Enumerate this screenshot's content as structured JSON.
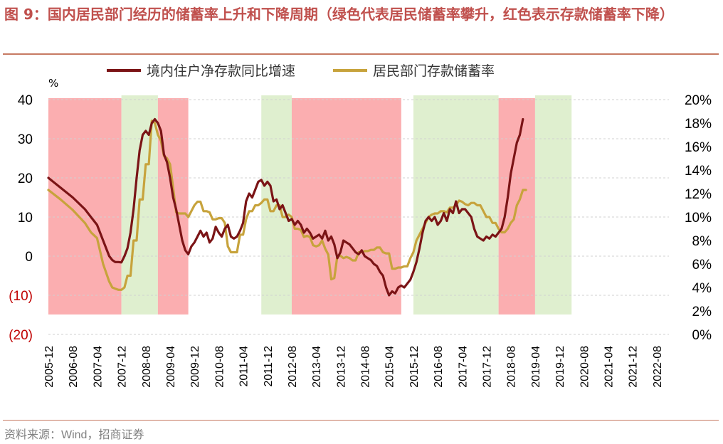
{
  "title": "图 9：国内居民部门经历的储蓄率上升和下降周期（绿色代表居民储蓄率攀升，红色表示存款储蓄率下降）",
  "source": "资料来源：Wind，招商证券",
  "chart_data": {
    "type": "line",
    "title": "图 9：国内居民部门经历的储蓄率上升和下降周期（绿色代表居民储蓄率攀升，红色表示存款储蓄率下降）",
    "y_unit": "%",
    "ylim_left": [
      -20,
      40
    ],
    "ylim_right": [
      0,
      20
    ],
    "left_ticks": [
      "40",
      "30",
      "20",
      "10",
      "0",
      "(10)",
      "(20)"
    ],
    "left_tick_values": [
      40,
      30,
      20,
      10,
      0,
      -10,
      -20
    ],
    "right_ticks": [
      "20%",
      "18%",
      "16%",
      "14%",
      "12%",
      "10%",
      "8%",
      "6%",
      "4%",
      "2%",
      "0%"
    ],
    "right_tick_values": [
      20,
      18,
      16,
      14,
      12,
      10,
      8,
      6,
      4,
      2,
      0
    ],
    "x_categories": [
      "2005-12",
      "2006-08",
      "2007-04",
      "2007-12",
      "2008-08",
      "2009-04",
      "2009-12",
      "2010-08",
      "2011-04",
      "2011-12",
      "2012-08",
      "2013-04",
      "2013-12",
      "2014-08",
      "2015-04",
      "2015-12",
      "2016-08",
      "2017-04",
      "2017-12",
      "2018-08",
      "2019-04",
      "2019-12",
      "2020-08",
      "2021-04",
      "2021-12",
      "2022-08"
    ],
    "x_start": "2005-12",
    "x_end": "2022-12",
    "colors": {
      "growth": "#7b1416",
      "rate": "#c7a33c",
      "green_band": "#dfefcf",
      "red_band": "#fbaeb0"
    },
    "bands": [
      {
        "type": "red",
        "start": 0,
        "end": 24
      },
      {
        "type": "green",
        "start": 24,
        "end": 36
      },
      {
        "type": "red",
        "start": 36,
        "end": 46
      },
      {
        "type": "green",
        "start": 70,
        "end": 80
      },
      {
        "type": "red",
        "start": 80,
        "end": 116
      },
      {
        "type": "green",
        "start": 120,
        "end": 148
      },
      {
        "type": "red",
        "start": 148,
        "end": 160
      },
      {
        "type": "green",
        "start": 160,
        "end": 172
      }
    ],
    "series": [
      {
        "name": "境内住户净存款同比增速",
        "axis": "left",
        "color": "#7b1416",
        "points": [
          [
            0,
            20
          ],
          [
            4,
            17.5
          ],
          [
            8,
            15
          ],
          [
            12,
            12
          ],
          [
            14,
            10
          ],
          [
            16,
            8
          ],
          [
            18,
            4
          ],
          [
            20,
            0
          ],
          [
            21,
            -1
          ],
          [
            22,
            -1.5
          ],
          [
            23,
            -1.5
          ],
          [
            24,
            -1.6
          ],
          [
            25,
            0
          ],
          [
            26,
            2
          ],
          [
            27,
            6
          ],
          [
            28,
            12
          ],
          [
            29,
            20
          ],
          [
            30,
            27
          ],
          [
            31,
            31
          ],
          [
            32,
            32
          ],
          [
            33,
            31
          ],
          [
            34,
            34
          ],
          [
            35,
            35
          ],
          [
            36,
            34
          ],
          [
            37,
            32
          ],
          [
            38,
            26
          ],
          [
            39,
            24
          ],
          [
            40,
            20
          ],
          [
            41,
            15
          ],
          [
            42,
            12
          ],
          [
            43,
            8
          ],
          [
            44,
            4
          ],
          [
            45,
            1.5
          ],
          [
            46,
            0.5
          ],
          [
            47,
            2.5
          ],
          [
            48,
            3.5
          ],
          [
            49,
            5
          ],
          [
            50,
            6.5
          ],
          [
            51,
            5
          ],
          [
            52,
            6
          ],
          [
            53,
            3.5
          ],
          [
            54,
            4.5
          ],
          [
            55,
            7.5
          ],
          [
            56,
            6
          ],
          [
            57,
            5
          ],
          [
            58,
            7
          ],
          [
            59,
            8
          ],
          [
            60,
            5
          ],
          [
            61,
            4.5
          ],
          [
            62,
            5
          ],
          [
            63,
            6.5
          ],
          [
            64,
            8.5
          ],
          [
            65,
            14
          ],
          [
            66,
            16
          ],
          [
            67,
            15
          ],
          [
            68,
            17
          ],
          [
            69,
            19
          ],
          [
            70,
            19.5
          ],
          [
            71,
            18
          ],
          [
            72,
            19
          ],
          [
            73,
            18
          ],
          [
            74,
            14
          ],
          [
            75,
            14.5
          ],
          [
            76,
            12
          ],
          [
            77,
            13
          ],
          [
            78,
            11
          ],
          [
            79,
            9
          ],
          [
            80,
            9.5
          ],
          [
            81,
            8
          ],
          [
            82,
            9
          ],
          [
            83,
            8
          ],
          [
            84,
            6
          ],
          [
            85,
            7
          ],
          [
            86,
            6
          ],
          [
            87,
            4.5
          ],
          [
            88,
            5
          ],
          [
            89,
            5.5
          ],
          [
            90,
            4.5
          ],
          [
            91,
            6.5
          ],
          [
            92,
            4
          ],
          [
            93,
            5
          ],
          [
            94,
            3
          ],
          [
            95,
            -0.5
          ],
          [
            96,
            1
          ],
          [
            97,
            4
          ],
          [
            98,
            3.5
          ],
          [
            99,
            3
          ],
          [
            100,
            2
          ],
          [
            101,
            1
          ],
          [
            102,
            0.5
          ],
          [
            103,
            1.5
          ],
          [
            104,
            0
          ],
          [
            105,
            -0.5
          ],
          [
            106,
            -1
          ],
          [
            107,
            -2
          ],
          [
            108,
            -2.5
          ],
          [
            109,
            -4
          ],
          [
            110,
            -5
          ],
          [
            111,
            -8
          ],
          [
            112,
            -10
          ],
          [
            113,
            -9
          ],
          [
            114,
            -9.5
          ],
          [
            115,
            -8
          ],
          [
            116,
            -7.5
          ],
          [
            117,
            -8
          ],
          [
            118,
            -7
          ],
          [
            119,
            -6
          ],
          [
            120,
            -4
          ],
          [
            121,
            -1.5
          ],
          [
            122,
            2
          ],
          [
            123,
            6
          ],
          [
            124,
            9
          ],
          [
            125,
            10
          ],
          [
            126,
            9
          ],
          [
            127,
            10
          ],
          [
            128,
            8
          ],
          [
            129,
            9
          ],
          [
            130,
            11
          ],
          [
            131,
            9
          ],
          [
            132,
            12
          ],
          [
            133,
            11
          ],
          [
            134,
            14
          ],
          [
            135,
            11
          ],
          [
            136,
            12
          ],
          [
            137,
            12
          ],
          [
            138,
            11
          ],
          [
            139,
            10
          ],
          [
            140,
            7
          ],
          [
            141,
            5
          ],
          [
            142,
            4.5
          ],
          [
            143,
            4
          ],
          [
            144,
            5
          ],
          [
            145,
            4.5
          ],
          [
            146,
            5.5
          ],
          [
            147,
            5
          ],
          [
            148,
            6
          ],
          [
            149,
            7
          ],
          [
            150,
            10
          ],
          [
            151,
            15
          ],
          [
            152,
            21
          ],
          [
            153,
            25
          ],
          [
            154,
            29
          ],
          [
            155,
            31
          ],
          [
            156,
            35
          ]
        ]
      },
      {
        "name": "居民部门存款储蓄率",
        "axis": "right",
        "color": "#c7a33c",
        "points": [
          [
            0,
            12.3
          ],
          [
            4,
            11.5
          ],
          [
            8,
            10.6
          ],
          [
            12,
            9.5
          ],
          [
            14,
            8.7
          ],
          [
            16,
            8.2
          ],
          [
            18,
            6
          ],
          [
            20,
            4.5
          ],
          [
            21,
            4
          ],
          [
            22,
            3.9
          ],
          [
            23,
            3.8
          ],
          [
            24,
            3.8
          ],
          [
            25,
            4
          ],
          [
            26,
            5
          ],
          [
            27,
            5
          ],
          [
            28,
            8
          ],
          [
            29,
            8
          ],
          [
            30,
            11.5
          ],
          [
            31,
            11.5
          ],
          [
            32,
            14.5
          ],
          [
            33,
            14.5
          ],
          [
            34,
            18.2
          ],
          [
            35,
            18
          ],
          [
            36,
            17
          ],
          [
            37,
            16.5
          ],
          [
            38,
            15.2
          ],
          [
            39,
            15
          ],
          [
            40,
            14.5
          ],
          [
            41,
            12.5
          ],
          [
            42,
            10.4
          ],
          [
            43,
            10.3
          ],
          [
            44,
            10.3
          ],
          [
            45,
            10.3
          ],
          [
            46,
            10
          ],
          [
            47,
            10.5
          ],
          [
            48,
            11
          ],
          [
            49,
            11.3
          ],
          [
            50,
            11.3
          ],
          [
            51,
            10.5
          ],
          [
            52,
            10.5
          ],
          [
            53,
            10.4
          ],
          [
            54,
            9.8
          ],
          [
            55,
            9.8
          ],
          [
            56,
            9.9
          ],
          [
            57,
            9.9
          ],
          [
            58,
            9.5
          ],
          [
            59,
            7.5
          ],
          [
            60,
            7
          ],
          [
            61,
            7
          ],
          [
            62,
            7
          ],
          [
            63,
            8.5
          ],
          [
            64,
            8.5
          ],
          [
            65,
            9.8
          ],
          [
            66,
            10.5
          ],
          [
            67,
            10.5
          ],
          [
            68,
            11
          ],
          [
            69,
            11
          ],
          [
            70,
            11.2
          ],
          [
            71,
            11.5
          ],
          [
            72,
            11.5
          ],
          [
            73,
            10.5
          ],
          [
            74,
            10.5
          ],
          [
            75,
            11
          ],
          [
            76,
            11
          ],
          [
            77,
            10
          ],
          [
            78,
            10
          ],
          [
            79,
            10.2
          ],
          [
            80,
            10
          ],
          [
            81,
            9
          ],
          [
            82,
            9
          ],
          [
            83,
            8.9
          ],
          [
            84,
            8.3
          ],
          [
            85,
            8.4
          ],
          [
            86,
            8.3
          ],
          [
            87,
            7.6
          ],
          [
            88,
            7.5
          ],
          [
            89,
            7.6
          ],
          [
            90,
            8
          ],
          [
            91,
            7.3
          ],
          [
            92,
            6.8
          ],
          [
            93,
            4.7
          ],
          [
            94,
            4.8
          ],
          [
            95,
            6.7
          ],
          [
            96,
            6.7
          ],
          [
            97,
            6.5
          ],
          [
            98,
            6.6
          ],
          [
            99,
            6.5
          ],
          [
            100,
            6.3
          ],
          [
            101,
            6.3
          ],
          [
            102,
            7
          ],
          [
            103,
            7
          ],
          [
            104,
            7.1
          ],
          [
            105,
            7.1
          ],
          [
            106,
            7.2
          ],
          [
            107,
            7.2
          ],
          [
            108,
            7.4
          ],
          [
            109,
            7.4
          ],
          [
            110,
            7
          ],
          [
            111,
            6.9
          ],
          [
            112,
            6.9
          ],
          [
            113,
            5.6
          ],
          [
            114,
            5.6
          ],
          [
            115,
            5.7
          ],
          [
            116,
            5.7
          ],
          [
            117,
            5.8
          ],
          [
            118,
            5.8
          ],
          [
            119,
            6.5
          ],
          [
            120,
            7
          ],
          [
            121,
            8
          ],
          [
            122,
            8.5
          ],
          [
            123,
            9
          ],
          [
            124,
            9.5
          ],
          [
            125,
            10
          ],
          [
            126,
            10.2
          ],
          [
            127,
            10.3
          ],
          [
            128,
            10.3
          ],
          [
            129,
            10.5
          ],
          [
            130,
            10.5
          ],
          [
            131,
            10.4
          ],
          [
            132,
            10.8
          ],
          [
            133,
            10.8
          ],
          [
            134,
            11
          ],
          [
            135,
            11.4
          ],
          [
            136,
            11.3
          ],
          [
            137,
            11.1
          ],
          [
            138,
            11
          ],
          [
            139,
            11.2
          ],
          [
            140,
            11.2
          ],
          [
            141,
            11
          ],
          [
            142,
            11
          ],
          [
            143,
            10.5
          ],
          [
            144,
            10
          ],
          [
            145,
            10
          ],
          [
            146,
            9.5
          ],
          [
            147,
            9.5
          ],
          [
            148,
            9
          ],
          [
            149,
            8.7
          ],
          [
            150,
            8.7
          ],
          [
            151,
            9
          ],
          [
            152,
            9.5
          ],
          [
            153,
            9.8
          ],
          [
            154,
            11
          ],
          [
            155,
            11.5
          ],
          [
            156,
            12.3
          ],
          [
            157,
            12.3
          ]
        ]
      }
    ]
  }
}
